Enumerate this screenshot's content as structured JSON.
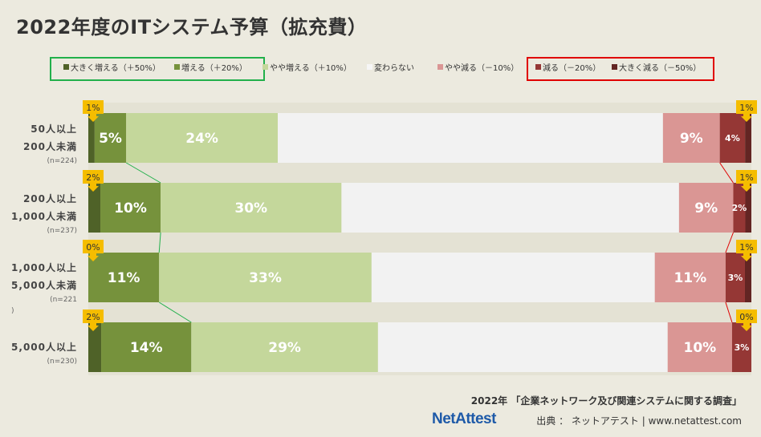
{
  "title": "2022年度のITシステム予算（拡充費）",
  "legend": [
    {
      "label": "大きく増える（＋50%）",
      "color": "#4f6228"
    },
    {
      "label": "増える（＋20%）",
      "color": "#76923c"
    },
    {
      "label": "やや増える（＋10%）",
      "color": "#c4d79b"
    },
    {
      "label": "変わらない",
      "color": "#f2f2f2"
    },
    {
      "label": "やや減る（－10%）",
      "color": "#da9694"
    },
    {
      "label": "減る（－20%）",
      "color": "#953735"
    },
    {
      "label": "大きく減る（－50%）",
      "color": "#632523"
    }
  ],
  "source": "2022年 「企業ネットワーク及び関連システムに関する調査」",
  "logo": "NetAttest",
  "credit": "出典 ： ネットアテスト | www.netattest.com",
  "chart_data": {
    "type": "bar",
    "stacked": true,
    "orientation": "horizontal",
    "title": "2022年度のITシステム予算（拡充費）",
    "categories": [
      {
        "lines": [
          "50人以上",
          "200人未満"
        ],
        "n": "(n=224)"
      },
      {
        "lines": [
          "200人以上",
          "1,000人未満"
        ],
        "n": "(n=237)"
      },
      {
        "lines": [
          "1,000人以上",
          "5,000人未満"
        ],
        "n": "(n=221",
        "n2": ")"
      },
      {
        "lines": [
          "5,000人以上"
        ],
        "n": "(n=230)"
      }
    ],
    "series": [
      {
        "name": "大きく増える（＋50%）",
        "values": [
          1,
          2,
          0,
          2
        ]
      },
      {
        "name": "増える（＋20%）",
        "values": [
          5,
          10,
          11,
          14
        ]
      },
      {
        "name": "やや増える（＋10%）",
        "values": [
          24,
          30,
          33,
          29
        ]
      },
      {
        "name": "変わらない",
        "values": [
          61,
          56,
          44,
          45
        ]
      },
      {
        "name": "やや減る（－10%）",
        "values": [
          9,
          9,
          11,
          10
        ]
      },
      {
        "name": "減る（－20%）",
        "values": [
          4,
          2,
          3,
          3
        ]
      },
      {
        "name": "大きく減る（－50%）",
        "values": [
          1,
          1,
          1,
          0
        ]
      }
    ],
    "data_labels": [
      [
        "1%",
        "5%",
        "24%",
        "",
        "9%",
        "4%",
        "1%"
      ],
      [
        "2%",
        "10%",
        "30%",
        "",
        "9%",
        "2%",
        "1%"
      ],
      [
        "0%",
        "11%",
        "33%",
        "",
        "11%",
        "3%",
        "1%"
      ],
      [
        "2%",
        "14%",
        "29%",
        "",
        "10%",
        "3%",
        "0%"
      ]
    ],
    "connector_lines": [
      "increase",
      "decrease"
    ]
  }
}
